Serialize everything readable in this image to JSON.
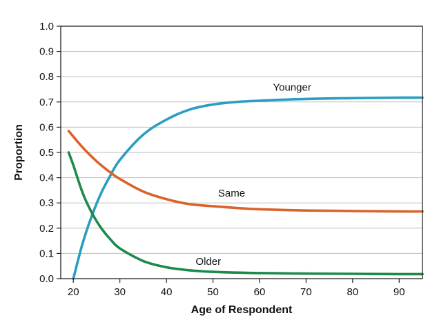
{
  "chart_data": {
    "type": "line",
    "title": "",
    "xlabel": "Age of Respondent",
    "ylabel": "Proportion",
    "xlim": [
      17.3,
      95
    ],
    "ylim": [
      0,
      1.0
    ],
    "x_ticks": [
      20,
      30,
      40,
      50,
      60,
      70,
      80,
      90
    ],
    "y_ticks": [
      "0.0",
      "0.1",
      "0.2",
      "0.3",
      "0.4",
      "0.5",
      "0.6",
      "0.7",
      "0.8",
      "0.9",
      "1.0"
    ],
    "grid": true,
    "series": [
      {
        "name": "Younger",
        "color": "#2a9dc0",
        "x": [
          20,
          22,
          24,
          26,
          28,
          30,
          35,
          40,
          45,
          50,
          55,
          60,
          70,
          80,
          90,
          95
        ],
        "y": [
          0.0,
          0.14,
          0.25,
          0.34,
          0.41,
          0.47,
          0.57,
          0.63,
          0.67,
          0.69,
          0.7,
          0.705,
          0.712,
          0.715,
          0.717,
          0.717
        ]
      },
      {
        "name": "Same",
        "color": "#d9632b",
        "x": [
          19,
          22,
          25,
          28,
          30,
          35,
          40,
          45,
          50,
          55,
          60,
          70,
          80,
          90,
          95
        ],
        "y": [
          0.585,
          0.52,
          0.465,
          0.42,
          0.395,
          0.345,
          0.315,
          0.295,
          0.287,
          0.28,
          0.275,
          0.27,
          0.268,
          0.266,
          0.266
        ]
      },
      {
        "name": "Older",
        "color": "#1d8a4a",
        "x": [
          19,
          20,
          22,
          24,
          26,
          28,
          30,
          35,
          40,
          45,
          50,
          55,
          60,
          70,
          80,
          90,
          95
        ],
        "y": [
          0.5,
          0.45,
          0.34,
          0.26,
          0.2,
          0.155,
          0.12,
          0.07,
          0.045,
          0.033,
          0.027,
          0.024,
          0.022,
          0.02,
          0.019,
          0.018,
          0.018
        ]
      }
    ],
    "annotations": [
      {
        "text": "Younger",
        "x": 67,
        "y": 0.745
      },
      {
        "text": "Same",
        "x": 54,
        "y": 0.325
      },
      {
        "text": "Older",
        "x": 49,
        "y": 0.055
      }
    ]
  }
}
